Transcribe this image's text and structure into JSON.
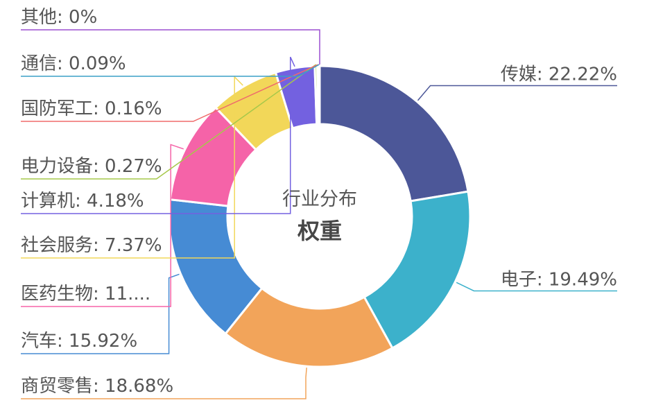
{
  "chart_data": {
    "type": "pie",
    "donut": true,
    "title": "权重",
    "subtitle": "行业分布",
    "slices": [
      {
        "name": "传媒",
        "value": 22.22,
        "label": "传媒: 22.22%",
        "color": "#4c5798"
      },
      {
        "name": "电子",
        "value": 19.49,
        "label": "电子: 19.49%",
        "color": "#3cb1cb"
      },
      {
        "name": "商贸零售",
        "value": 18.68,
        "label": "商贸零售: 18.68%",
        "color": "#f2a45a"
      },
      {
        "name": "汽车",
        "value": 15.92,
        "label": "汽车: 15.92%",
        "color": "#468bd4"
      },
      {
        "name": "医药生物",
        "value": 11.0,
        "label": "医药生物: 11....",
        "color": "#f563a8"
      },
      {
        "name": "社会服务",
        "value": 7.37,
        "label": "社会服务: 7.37%",
        "color": "#f2d759"
      },
      {
        "name": "计算机",
        "value": 4.18,
        "label": "计算机: 4.18%",
        "color": "#7361e0"
      },
      {
        "name": "电力设备",
        "value": 0.27,
        "label": "电力设备: 0.27%",
        "color": "#a6c84a"
      },
      {
        "name": "国防军工",
        "value": 0.16,
        "label": "国防军工: 0.16%",
        "color": "#ef6b6b"
      },
      {
        "name": "通信",
        "value": 0.09,
        "label": "通信: 0.09%",
        "color": "#3a9fc7"
      },
      {
        "name": "其他",
        "value": 0,
        "label": "其他: 0%",
        "color": "#9b4fd1"
      }
    ]
  }
}
